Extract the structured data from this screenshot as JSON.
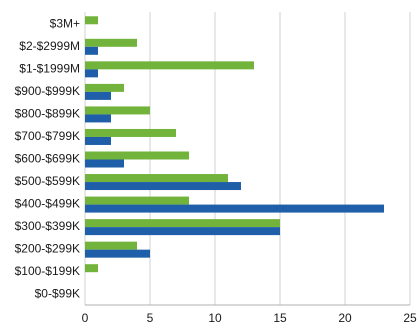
{
  "chart_data": {
    "type": "bar",
    "orientation": "horizontal",
    "categories": [
      "$3M+",
      "$2-$2999M",
      "$1-$1999M",
      "$900-$999K",
      "$800-$899K",
      "$700-$799K",
      "$600-$699K",
      "$500-$599K",
      "$400-$499K",
      "$300-$399K",
      "$200-$299K",
      "$100-$199K",
      "$0-$99K"
    ],
    "series": [
      {
        "color": "#72b33b",
        "values": [
          1,
          4,
          13,
          3,
          5,
          7,
          8,
          11,
          8,
          15,
          4,
          1,
          0
        ]
      },
      {
        "color": "#1f5ea8",
        "values": [
          0,
          1,
          1,
          2,
          2,
          2,
          3,
          12,
          23,
          15,
          5,
          0,
          0
        ]
      }
    ],
    "xlim": [
      0,
      25
    ],
    "xticks": [
      0,
      5,
      10,
      15,
      20,
      25
    ],
    "grid": "vertical",
    "legend": "none",
    "title": "",
    "xlabel": "",
    "ylabel": ""
  }
}
